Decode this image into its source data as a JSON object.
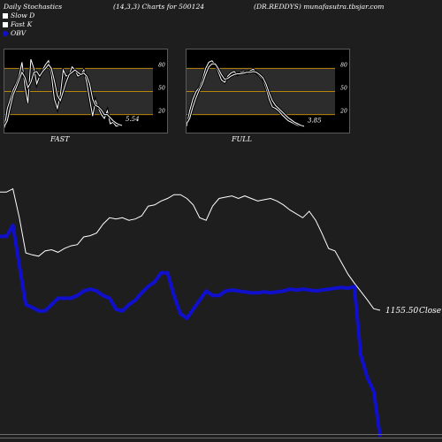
{
  "header": {
    "title": "Daily Stochastics",
    "params": "(14,3,3) Charts for 500124",
    "symbol": "(DR.REDDYS) munafasutra.tbsjar.com"
  },
  "legend": [
    {
      "label": "Slow  D",
      "color": "#ffffff"
    },
    {
      "label": "Fast K",
      "color": "#ffffff"
    },
    {
      "label": "OBV",
      "color": "#1010cc"
    }
  ],
  "colors": {
    "background": "#1e1e1e",
    "panel": "#000000",
    "level_line": "#b8860b",
    "obv": "#1010cc",
    "price": "#ffffff"
  },
  "chart_data": [
    {
      "type": "line",
      "panel_label": "FAST",
      "ylim": [
        0,
        100
      ],
      "y_ticks": [
        "80",
        "50",
        "20"
      ],
      "levels": [
        80,
        50,
        20
      ],
      "last_value_label": "5.54",
      "series": [
        {
          "name": "Fast K",
          "values": [
            3,
            28,
            40,
            52,
            60,
            70,
            88,
            55,
            35,
            92,
            80,
            60,
            70,
            78,
            85,
            90,
            72,
            40,
            28,
            45,
            78,
            70,
            72,
            82,
            78,
            70,
            72,
            78,
            62,
            40,
            18,
            38,
            28,
            20,
            15,
            25,
            8,
            10,
            5,
            6,
            5.54
          ]
        },
        {
          "name": "Slow  D",
          "values": [
            5,
            12,
            30,
            46,
            55,
            65,
            75,
            68,
            55,
            62,
            75,
            76,
            70,
            76,
            80,
            85,
            80,
            64,
            45,
            38,
            50,
            62,
            72,
            75,
            78,
            75,
            72,
            74,
            70,
            60,
            40,
            32,
            30,
            26,
            20,
            20,
            16,
            12,
            9,
            7,
            6
          ]
        }
      ]
    },
    {
      "type": "line",
      "panel_label": "FULL",
      "ylim": [
        0,
        100
      ],
      "y_ticks": [
        "80",
        "50",
        "20"
      ],
      "levels": [
        80,
        50,
        20
      ],
      "last_value_label": "3.85",
      "series": [
        {
          "name": "Fast K",
          "values": [
            5,
            25,
            40,
            50,
            55,
            65,
            80,
            88,
            90,
            85,
            76,
            65,
            62,
            70,
            74,
            76,
            72,
            75,
            76,
            74,
            77,
            79,
            74,
            70,
            66,
            55,
            40,
            30,
            28,
            25,
            20,
            16,
            12,
            10,
            8,
            6,
            5,
            3.85
          ]
        },
        {
          "name": "Slow  D",
          "values": [
            8,
            15,
            30,
            42,
            52,
            60,
            72,
            82,
            86,
            86,
            80,
            72,
            66,
            67,
            70,
            72,
            73,
            73,
            74,
            75,
            75,
            76,
            75,
            72,
            68,
            60,
            48,
            38,
            32,
            28,
            24,
            20,
            16,
            13,
            10,
            8,
            6,
            5
          ]
        }
      ]
    },
    {
      "type": "line",
      "last_price_label": "1155.50",
      "close_label": "Close",
      "series": [
        {
          "name": "Price",
          "values": [
            1340,
            1340,
            1345,
            1300,
            1245,
            1242,
            1240,
            1248,
            1250,
            1246,
            1252,
            1256,
            1258,
            1270,
            1272,
            1276,
            1290,
            1300,
            1298,
            1300,
            1296,
            1298,
            1303,
            1318,
            1320,
            1326,
            1330,
            1336,
            1336,
            1330,
            1320,
            1300,
            1296,
            1318,
            1330,
            1332,
            1334,
            1330,
            1334,
            1330,
            1326,
            1328,
            1330,
            1326,
            1320,
            1312,
            1306,
            1300,
            1310,
            1296,
            1275,
            1252,
            1248,
            1230,
            1212,
            1198,
            1185,
            1172,
            1158,
            1155.5
          ]
        },
        {
          "name": "OBV",
          "values": [
            280,
            280,
            292,
            248,
            205,
            202,
            198,
            198,
            205,
            212,
            212,
            212,
            215,
            220,
            222,
            220,
            215,
            212,
            200,
            198,
            205,
            210,
            218,
            225,
            230,
            240,
            240,
            215,
            195,
            190,
            200,
            210,
            220,
            215,
            215,
            220,
            221,
            220,
            219,
            218,
            218,
            219,
            218,
            219,
            220,
            222,
            221,
            222,
            221,
            220,
            221,
            222,
            223,
            224,
            223,
            225,
            150,
            125,
            110,
            60
          ]
        }
      ]
    }
  ]
}
